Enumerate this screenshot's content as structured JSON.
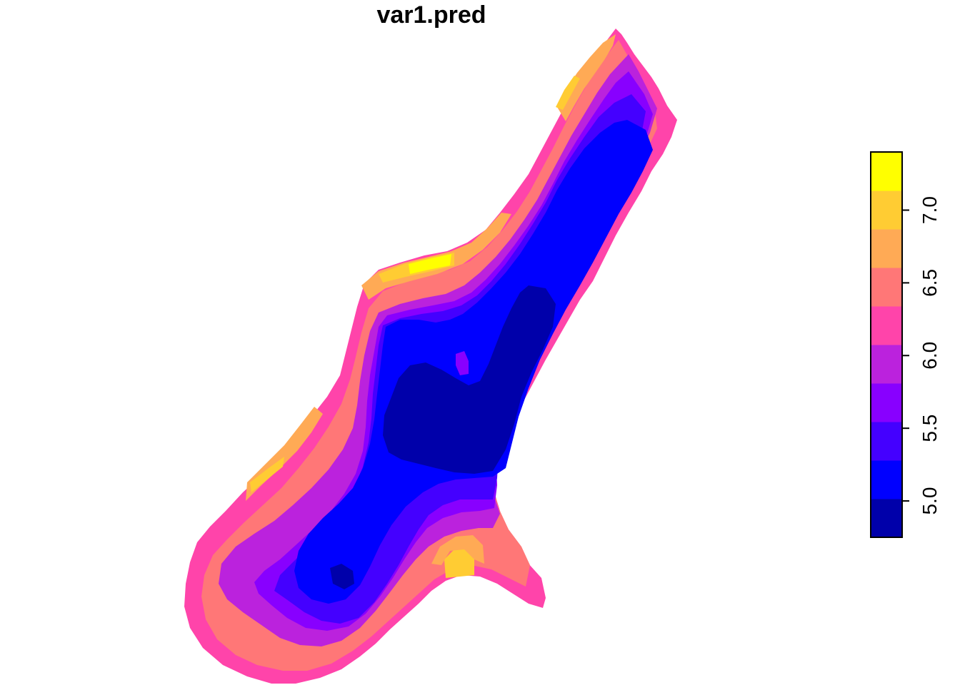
{
  "title": "var1.pred",
  "legend": {
    "breaks": [
      4.75,
      5.0,
      5.25,
      5.5,
      5.75,
      6.0,
      6.25,
      6.5,
      6.75,
      7.0,
      7.25,
      7.4
    ],
    "colors": [
      "#0000aa",
      "#0000ff",
      "#4400ff",
      "#8800ff",
      "#bb22dd",
      "#ff44aa",
      "#ff7777",
      "#ffaa55",
      "#ffcc33",
      "#ffff00"
    ],
    "tick_values": [
      5.0,
      5.5,
      6.0,
      6.5,
      7.0
    ],
    "tick_labels": [
      "5.0",
      "5.5",
      "6.0",
      "6.5",
      "7.0"
    ]
  },
  "zones": [
    {
      "level": 5,
      "color_index": 5,
      "description": "outer rim"
    },
    {
      "level": 3,
      "color_index": 3
    },
    {
      "level": 1,
      "color_index": 1
    },
    {
      "level": 0,
      "color_index": 0
    }
  ]
}
